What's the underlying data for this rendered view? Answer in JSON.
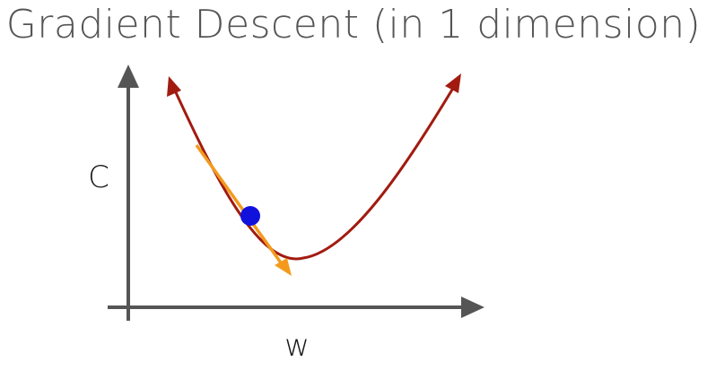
{
  "title": "Gradient Descent (in 1 dimension)",
  "axes": {
    "y_label": "C",
    "x_label": "w"
  },
  "colors": {
    "axis": "#555555",
    "curve": "#a21b10",
    "tangent": "#f39a1d",
    "point": "#1111dd",
    "title": "#555555",
    "label": "#1a1a1a"
  }
}
